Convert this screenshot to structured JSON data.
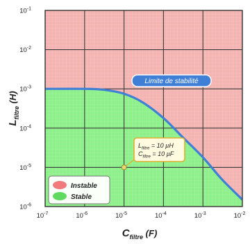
{
  "chart_data": {
    "type": "area",
    "xlabel": "C",
    "xlabel_sub": "filtre",
    "xlabel_unit": "(F)",
    "ylabel": "L",
    "ylabel_sub": "filtre",
    "ylabel_unit": "(H)",
    "x_scale": "log",
    "y_scale": "log",
    "xlim": [
      1e-07,
      0.01
    ],
    "ylim": [
      1e-06,
      0.1
    ],
    "x_ticks": [
      {
        "value": 1e-07,
        "base": "10",
        "exp": "-7"
      },
      {
        "value": 1e-06,
        "base": "10",
        "exp": "-6"
      },
      {
        "value": 1e-05,
        "base": "10",
        "exp": "-5"
      },
      {
        "value": 0.0001,
        "base": "10",
        "exp": "-4"
      },
      {
        "value": 0.001,
        "base": "10",
        "exp": "-3"
      },
      {
        "value": 0.01,
        "base": "10",
        "exp": "-2"
      }
    ],
    "y_ticks": [
      {
        "value": 0.1,
        "base": "10",
        "exp": "-1"
      },
      {
        "value": 0.01,
        "base": "10",
        "exp": "-2"
      },
      {
        "value": 0.001,
        "base": "10",
        "exp": "-3"
      },
      {
        "value": 0.0001,
        "base": "10",
        "exp": "-4"
      },
      {
        "value": 1e-05,
        "base": "10",
        "exp": "-5"
      },
      {
        "value": 1e-06,
        "base": "10",
        "exp": "-6"
      }
    ],
    "grid": true,
    "boundary": {
      "name": "Limite de stabilité",
      "x": [
        1e-07,
        1e-06,
        3e-06,
        1e-05,
        3e-05,
        0.0001,
        0.0003,
        0.001,
        0.003,
        0.01
      ],
      "y": [
        0.001,
        0.001,
        0.00095,
        0.00075,
        0.00045,
        0.00018,
        6e-05,
        1.8e-05,
        5e-06,
        1.5e-06
      ]
    },
    "regions": [
      {
        "name": "Instable",
        "color": "#f07a7c",
        "fill": "#f4b4b2"
      },
      {
        "name": "Stable",
        "color": "#5fd95f",
        "fill": "#8ef08a"
      }
    ],
    "legend_position": "bottom-left",
    "point": {
      "x": 1e-05,
      "y": 1e-05,
      "label_lines": [
        {
          "sym": "L",
          "sub": "filtre",
          "value": " = 10 µH"
        },
        {
          "sym": "C",
          "sub": "filtre",
          "value": " = 10 µF"
        }
      ]
    },
    "colors": {
      "boundary_line": "#3f7fd6",
      "boundary_label_bg": "#3f7fd6",
      "point_label_border": "#e0b030",
      "point_label_bg": "#fffbe0",
      "point_marker": "#e8d870"
    }
  }
}
